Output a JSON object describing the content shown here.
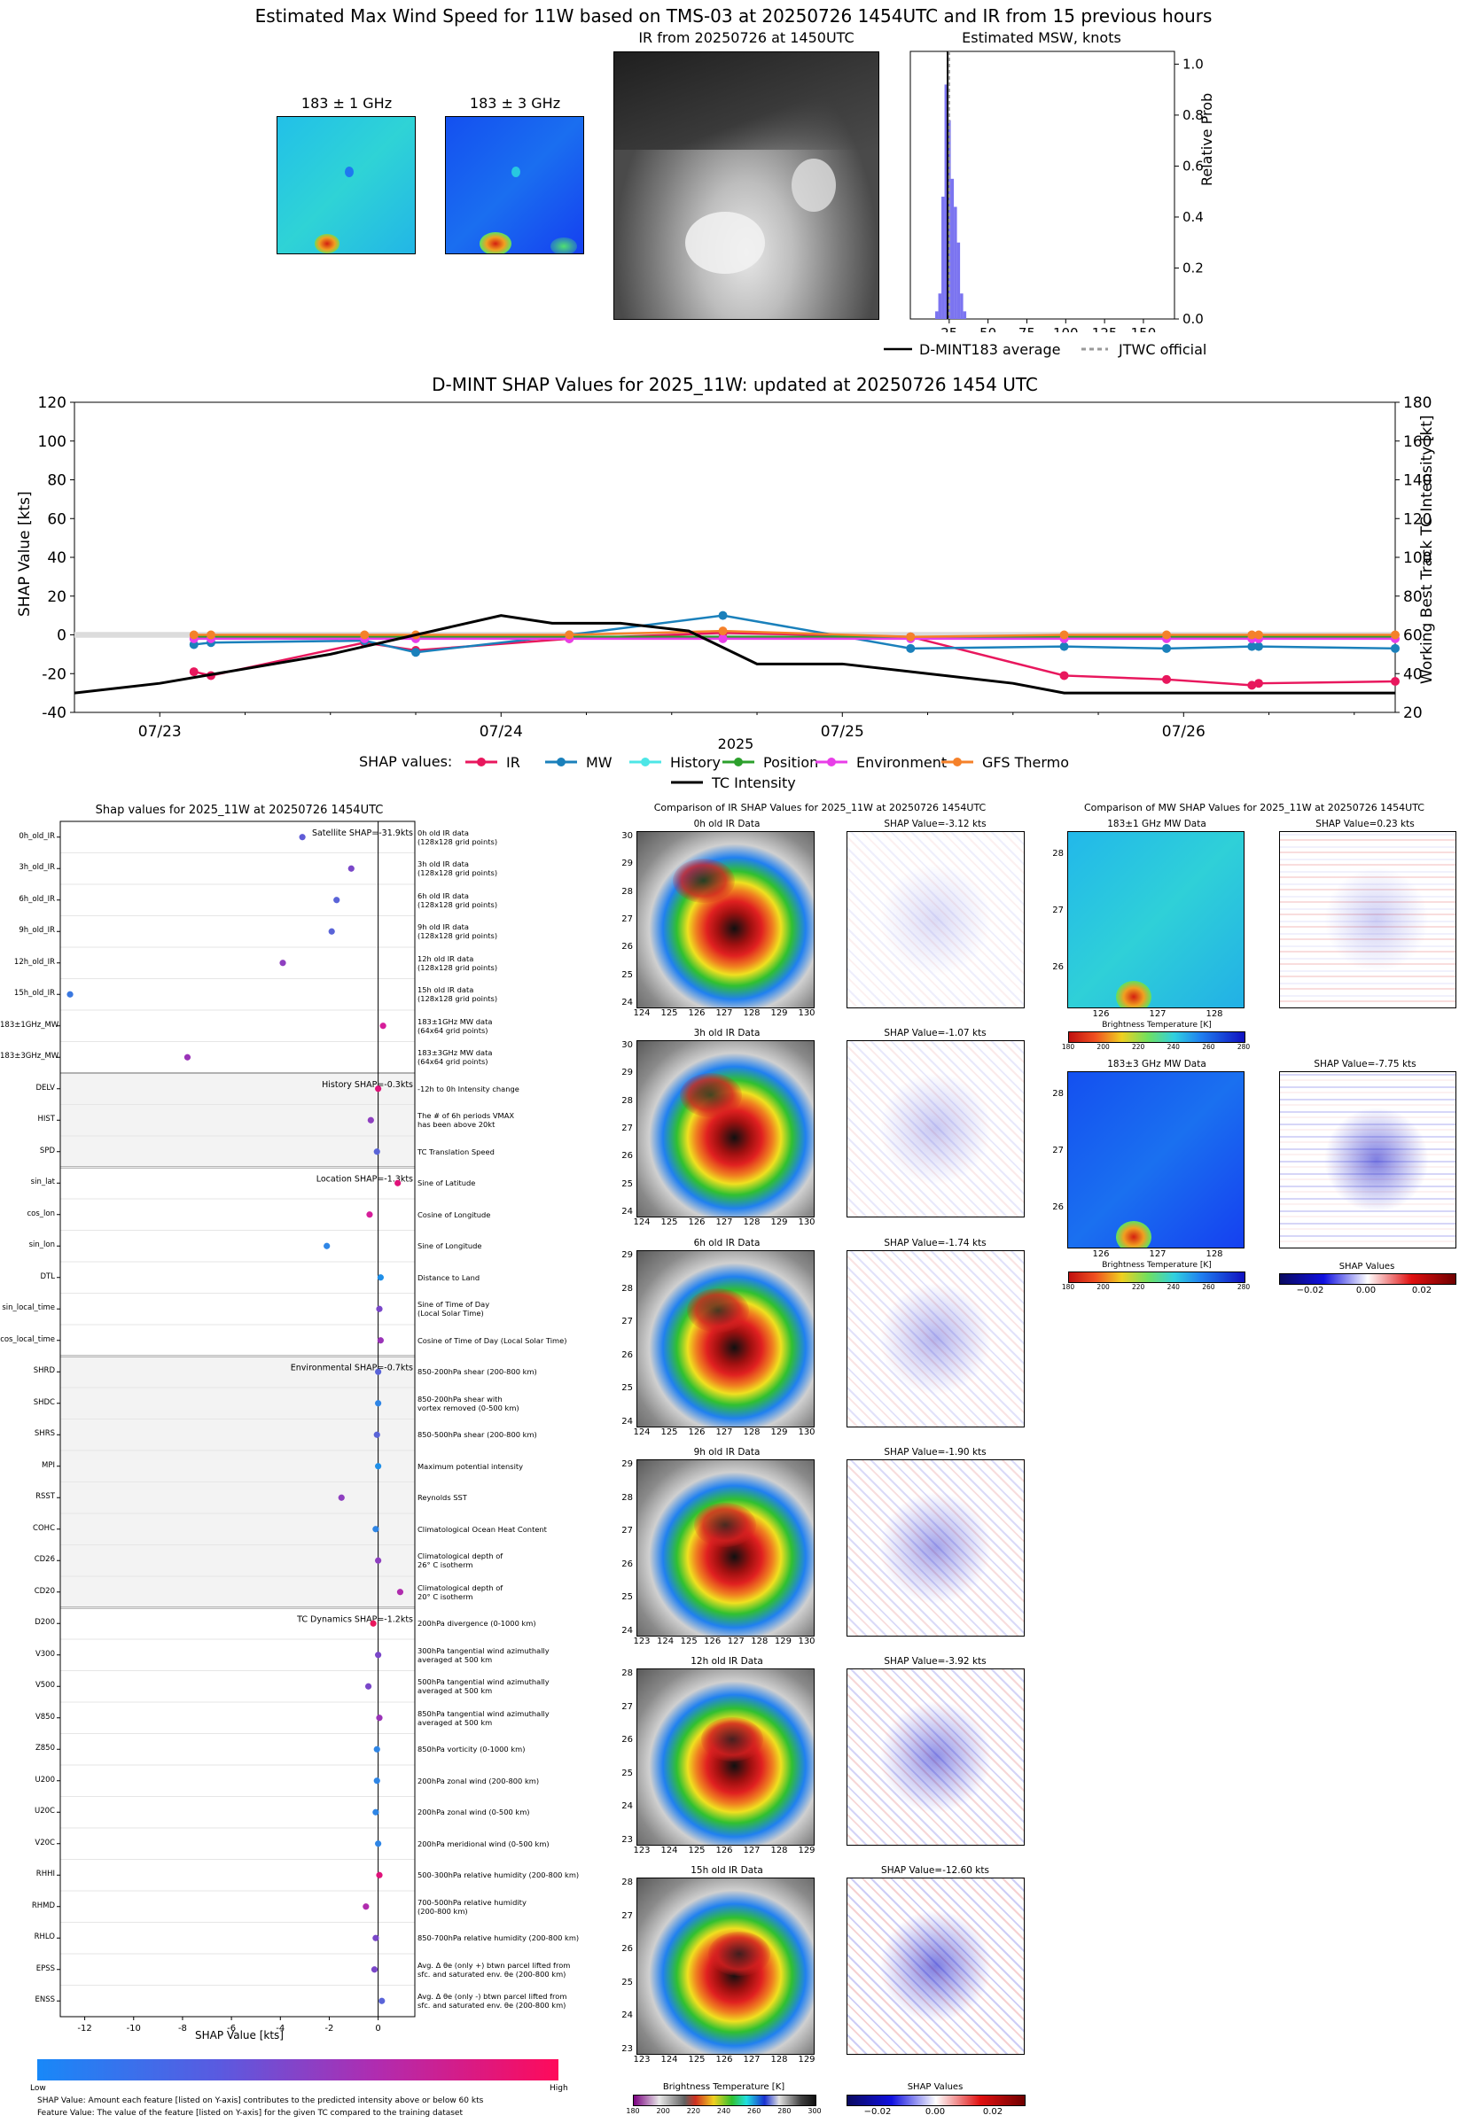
{
  "header": {
    "main_title": "Estimated Max Wind Speed for 11W based on TMS-03 at 20250726 1454UTC and IR from 15 previous hours",
    "mw1_title": "183 ± 1 GHz",
    "mw3_title": "183 ± 3 GHz",
    "ir_title": "IR from 20250726 at 1450UTC",
    "hist_title": "Estimated MSW, knots",
    "hist_ylabel": "Relative Prob",
    "legend_dmint": "D-MINT183 average",
    "legend_jtwc": "JTWC official"
  },
  "hist_chart": {
    "type": "bar",
    "x_ticks": [
      "25",
      "50",
      "75",
      "100",
      "125",
      "150"
    ],
    "y_ticks": [
      "0.0",
      "0.2",
      "0.4",
      "0.6",
      "0.8",
      "1.0"
    ],
    "xlim": [
      0,
      170
    ],
    "ylim": [
      0,
      1.05
    ],
    "bins": [
      16,
      18,
      20,
      22,
      24,
      26,
      28,
      30,
      32,
      34
    ],
    "probs": [
      0.03,
      0.1,
      0.48,
      0.92,
      0.78,
      0.55,
      0.44,
      0.3,
      0.1,
      0.03
    ],
    "dmint_avg": 24,
    "jtwc": 25,
    "colors": {
      "bar": "#7b74f0",
      "line": "#000000"
    }
  },
  "shap_line": {
    "title": "D-MINT SHAP Values for 2025_11W: updated at 20250726 1454 UTC",
    "ylabel_left": "SHAP Value [kts]",
    "ylabel_right": "Working Best Track TC Intensity [kt]",
    "xlabel": "2025",
    "left_ticks": [
      "-40",
      "-20",
      "0",
      "20",
      "40",
      "60",
      "80",
      "100",
      "120"
    ],
    "right_ticks": [
      "20",
      "40",
      "60",
      "80",
      "100",
      "120",
      "140",
      "160",
      "180"
    ],
    "x_ticks": [
      "07/23",
      "07/24",
      "07/25",
      "07/26"
    ],
    "legend_title": "SHAP values:",
    "legend": [
      "IR",
      "MW",
      "History",
      "Position",
      "Environment",
      "GFS Thermo",
      "TC Intensity"
    ]
  },
  "chart_data": [
    {
      "type": "line",
      "title": "D-MINT SHAP Values for 2025_11W: updated at 20250726 1454 UTC",
      "xlabel": "2025",
      "x_days": [
        0.2,
        0.4,
        0.6,
        1.0,
        1.5,
        2.2,
        2.7,
        2.9,
        3.1,
        3.3
      ],
      "ylim_left": [
        -40,
        120
      ],
      "ylim_right": [
        20,
        180
      ],
      "xlim_days": [
        -0.25,
        3.62
      ],
      "series": [
        {
          "name": "IR",
          "color": "#e8175d",
          "x": [
            0.1,
            0.15,
            0.6,
            0.75,
            1.2,
            1.65,
            2.2,
            2.65,
            2.95,
            3.2,
            3.22,
            3.62
          ],
          "y": [
            -19,
            -21,
            -4,
            -8,
            -2,
            1,
            -1,
            -21,
            -23,
            -26,
            -25,
            -24
          ]
        },
        {
          "name": "MW",
          "color": "#1a80bb",
          "x": [
            0.1,
            0.15,
            0.6,
            0.75,
            1.2,
            1.65,
            2.2,
            2.65,
            2.95,
            3.2,
            3.22,
            3.62
          ],
          "y": [
            -5,
            -4,
            -3,
            -9,
            0,
            10,
            -7,
            -6,
            -7,
            -6,
            -6,
            -7
          ]
        },
        {
          "name": "History",
          "color": "#4de6e6",
          "x": [
            0.1,
            3.62
          ],
          "y": [
            -1,
            -1
          ]
        },
        {
          "name": "Position",
          "color": "#2ca02c",
          "x": [
            0.1,
            3.62
          ],
          "y": [
            -1,
            -1
          ]
        },
        {
          "name": "Environment",
          "color": "#e83ee8",
          "x": [
            0.1,
            0.15,
            0.6,
            0.75,
            1.2,
            1.65,
            2.2,
            2.65,
            2.95,
            3.2,
            3.22,
            3.62
          ],
          "y": [
            -2,
            -2,
            -2,
            -2,
            -2,
            -2,
            -2,
            -2,
            -2,
            -2,
            -2,
            -2
          ]
        },
        {
          "name": "GFS Thermo",
          "color": "#f5812a",
          "x": [
            0.1,
            0.15,
            0.6,
            0.75,
            1.2,
            1.65,
            2.2,
            2.65,
            2.95,
            3.2,
            3.22,
            3.62
          ],
          "y": [
            0,
            0,
            0,
            0,
            0,
            2,
            -1,
            0,
            0,
            0,
            0,
            0
          ]
        }
      ],
      "intensity": {
        "name": "TC Intensity",
        "color": "#000000",
        "x": [
          -0.25,
          0.0,
          0.5,
          1.0,
          1.15,
          1.35,
          1.55,
          1.75,
          2.0,
          2.25,
          2.5,
          2.65,
          3.0,
          3.62
        ],
        "y": [
          30,
          35,
          50,
          70,
          66,
          66,
          62,
          45,
          45,
          40,
          35,
          30,
          30,
          30
        ]
      }
    },
    {
      "type": "scatter",
      "title": "Shap values for 2025_11W at 20250726 1454UTC",
      "xlabel": "SHAP Value [kts]",
      "xlim": [
        -13,
        1.5
      ],
      "x_ticks": [
        "-12",
        "-10",
        "-8",
        "-6",
        "-4",
        "-2",
        "0"
      ],
      "features": [
        {
          "name": "0h_old_IR",
          "value": -3.1,
          "color": "#5f5bd6"
        },
        {
          "name": "3h_old_IR",
          "value": -1.1,
          "color": "#7a47c9"
        },
        {
          "name": "6h_old_IR",
          "value": -1.7,
          "color": "#5a64d8"
        },
        {
          "name": "9h_old_IR",
          "value": -1.9,
          "color": "#5a64d8"
        },
        {
          "name": "12h_old_IR",
          "value": -3.9,
          "color": "#8e3fc0"
        },
        {
          "name": "15h_old_IR",
          "value": -12.6,
          "color": "#3a78e0"
        },
        {
          "name": "183±1GHz_MW",
          "value": 0.2,
          "color": "#d61e9a"
        },
        {
          "name": "183±3GHz_MW",
          "value": -7.8,
          "color": "#9a33b8"
        },
        {
          "name": "DELV",
          "value": 0.0,
          "color": "#e0127a"
        },
        {
          "name": "HIST",
          "value": -0.3,
          "color": "#8e3fc0"
        },
        {
          "name": "SPD",
          "value": -0.05,
          "color": "#5a64d8"
        },
        {
          "name": "sin_lat",
          "value": 0.8,
          "color": "#e0127a"
        },
        {
          "name": "cos_lon",
          "value": -0.35,
          "color": "#d61e9a"
        },
        {
          "name": "sin_lon",
          "value": -2.1,
          "color": "#2f86e6"
        },
        {
          "name": "DTL",
          "value": 0.1,
          "color": "#1f8fe8"
        },
        {
          "name": "sin_local_time",
          "value": 0.05,
          "color": "#7a47c9"
        },
        {
          "name": "cos_local_time",
          "value": 0.1,
          "color": "#9a33b8"
        },
        {
          "name": "SHRD",
          "value": 0.0,
          "color": "#5a64d8"
        },
        {
          "name": "SHDC",
          "value": 0.0,
          "color": "#2f86e6"
        },
        {
          "name": "SHRS",
          "value": -0.05,
          "color": "#5a64d8"
        },
        {
          "name": "MPI",
          "value": 0.0,
          "color": "#1f8fe8"
        },
        {
          "name": "RSST",
          "value": -1.5,
          "color": "#8e3fc0"
        },
        {
          "name": "COHC",
          "value": -0.1,
          "color": "#2f86e6"
        },
        {
          "name": "CD26",
          "value": 0.0,
          "color": "#8e3fc0"
        },
        {
          "name": "CD20",
          "value": 0.9,
          "color": "#b02cae"
        },
        {
          "name": "D200",
          "value": -0.2,
          "color": "#e8175d"
        },
        {
          "name": "V300",
          "value": 0.0,
          "color": "#7a47c9"
        },
        {
          "name": "V500",
          "value": -0.4,
          "color": "#7a47c9"
        },
        {
          "name": "V850",
          "value": 0.05,
          "color": "#9a33b8"
        },
        {
          "name": "Z850",
          "value": -0.05,
          "color": "#2f86e6"
        },
        {
          "name": "U200",
          "value": -0.05,
          "color": "#2f86e6"
        },
        {
          "name": "U20C",
          "value": -0.1,
          "color": "#2f86e6"
        },
        {
          "name": "V20C",
          "value": 0.0,
          "color": "#2f86e6"
        },
        {
          "name": "RHHI",
          "value": 0.05,
          "color": "#e0127a"
        },
        {
          "name": "RHMD",
          "value": -0.5,
          "color": "#b02cae"
        },
        {
          "name": "RHLO",
          "value": -0.1,
          "color": "#7a47c9"
        },
        {
          "name": "EPSS",
          "value": -0.15,
          "color": "#7a47c9"
        },
        {
          "name": "ENSS",
          "value": 0.15,
          "color": "#5a64d8"
        }
      ]
    }
  ],
  "shap_features": {
    "title": "Shap values for 2025_11W at 20250726 1454UTC",
    "xlabel": "SHAP Value [kts]",
    "x_ticks": [
      "-12",
      "-10",
      "-8",
      "-6",
      "-4",
      "-2",
      "0"
    ],
    "groups": [
      {
        "label": "Satellite SHAP=-31.9kts"
      },
      {
        "label": "History SHAP=-0.3kts"
      },
      {
        "label": "Location SHAP=-1.3kts"
      },
      {
        "label": "Environmental SHAP=-0.7kts"
      },
      {
        "label": "TC Dynamics SHAP=-1.2kts"
      }
    ],
    "descriptions": [
      "0h old IR data\n(128x128 grid points)",
      "3h old IR data\n(128x128 grid points)",
      "6h old IR data\n(128x128 grid points)",
      "9h old IR data\n(128x128 grid points)",
      "12h old IR data\n(128x128 grid points)",
      "15h old IR data\n(128x128 grid points)",
      "183±1GHz MW data\n(64x64 grid points)",
      "183±3GHz MW data\n(64x64 grid points)",
      "-12h to 0h Intensity change",
      "The # of 6h periods VMAX\nhas been above 20kt",
      "TC Translation Speed",
      "Sine of Latitude",
      "Cosine of Longitude",
      "Sine of Longitude",
      "Distance to Land",
      "Sine of Time of Day\n(Local Solar Time)",
      "Cosine of Time of Day (Local Solar Time)",
      "850-200hPa shear (200-800 km)",
      "850-200hPa shear with\nvortex removed (0-500 km)",
      "850-500hPa shear (200-800 km)",
      "Maximum potential intensity",
      "Reynolds SST",
      "Climatological Ocean Heat Content",
      "Climatological depth of\n26° C isotherm",
      "Climatological depth of\n20° C isotherm",
      "200hPa divergence (0-1000 km)",
      "300hPa tangential wind azimuthally\naveraged at 500 km",
      "500hPa tangential wind azimuthally\naveraged at 500 km",
      "850hPa tangential wind azimuthally\naveraged at 500 km",
      "850hPa vorticity (0-1000 km)",
      "200hPa zonal wind (200-800 km)",
      "200hPa zonal wind (0-500 km)",
      "200hPa meridional wind (0-500 km)",
      "500-300hPa relative humidity (200-800 km)",
      "700-500hPa relative humidity\n(200-800 km)",
      "850-700hPa relative humidity (200-800 km)",
      "Avg. Δ θe (only +) btwn parcel lifted from\nsfc. and saturated env. θe (200-800 km)",
      "Avg. Δ θe (only -) btwn parcel lifted from\nsfc. and saturated env. θe (200-800 km)"
    ],
    "colorbar_low": "Low",
    "colorbar_high": "High",
    "footnote1": "SHAP Value: Amount each feature [listed on Y-axis] contributes to the predicted intensity above or below 60 kts",
    "footnote2": "Feature Value: The value of the feature [listed on Y-axis] for the given TC compared to the training dataset"
  },
  "ir_compare": {
    "title": "Comparison of IR SHAP Values for 2025_11W at 20250726 1454UTC",
    "rows": [
      {
        "data_title": "0h old IR Data",
        "shap_title": "SHAP Value=-3.12 kts",
        "yticks": [
          "30",
          "29",
          "28",
          "27",
          "26",
          "25",
          "24"
        ],
        "xticks": [
          "124",
          "125",
          "126",
          "127",
          "128",
          "129",
          "130"
        ]
      },
      {
        "data_title": "3h old IR Data",
        "shap_title": "SHAP Value=-1.07 kts",
        "yticks": [
          "30",
          "29",
          "28",
          "27",
          "26",
          "25",
          "24"
        ],
        "xticks": [
          "124",
          "125",
          "126",
          "127",
          "128",
          "129",
          "130"
        ]
      },
      {
        "data_title": "6h old IR Data",
        "shap_title": "SHAP Value=-1.74 kts",
        "yticks": [
          "29",
          "28",
          "27",
          "26",
          "25",
          "24"
        ],
        "xticks": [
          "124",
          "125",
          "126",
          "127",
          "128",
          "129",
          "130"
        ]
      },
      {
        "data_title": "9h old IR Data",
        "shap_title": "SHAP Value=-1.90 kts",
        "yticks": [
          "29",
          "28",
          "27",
          "26",
          "25",
          "24"
        ],
        "xticks": [
          "123",
          "124",
          "125",
          "126",
          "127",
          "128",
          "129",
          "130"
        ]
      },
      {
        "data_title": "12h old IR Data",
        "shap_title": "SHAP Value=-3.92 kts",
        "yticks": [
          "28",
          "27",
          "26",
          "25",
          "24",
          "23"
        ],
        "xticks": [
          "123",
          "124",
          "125",
          "126",
          "127",
          "128",
          "129"
        ]
      },
      {
        "data_title": "15h old IR Data",
        "shap_title": "SHAP Value=-12.60 kts",
        "yticks": [
          "28",
          "27",
          "26",
          "25",
          "24",
          "23"
        ],
        "xticks": [
          "123",
          "124",
          "125",
          "126",
          "127",
          "128",
          "129"
        ]
      }
    ],
    "cb_label": "Brightness Temperature [K]",
    "cb_ticks": [
      "180",
      "200",
      "220",
      "240",
      "260",
      "280",
      "300"
    ],
    "shap_cb_label": "SHAP Values",
    "shap_cb_ticks": [
      "−0.02",
      "0.00",
      "0.02"
    ]
  },
  "mw_compare": {
    "title": "Comparison of MW SHAP Values for 2025_11W at 20250726 1454UTC",
    "rows": [
      {
        "data_title": "183±1 GHz MW Data",
        "shap_title": "SHAP Value=0.23 kts"
      },
      {
        "data_title": "183±3 GHz MW Data",
        "shap_title": "SHAP Value=-7.75 kts"
      }
    ],
    "yticks": [
      "28",
      "27",
      "26"
    ],
    "xticks": [
      "126",
      "127",
      "128"
    ],
    "cb_label": "Brightness Temperature [K]",
    "cb_ticks": [
      "180",
      "200",
      "220",
      "240",
      "260",
      "280"
    ],
    "shap_cb_label": "SHAP Values",
    "shap_cb_ticks": [
      "−0.02",
      "0.00",
      "0.02"
    ]
  }
}
